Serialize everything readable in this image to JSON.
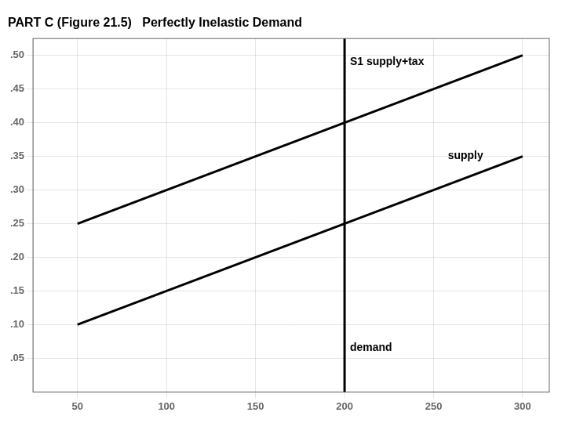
{
  "chart_data": {
    "type": "line",
    "title": "PART C (Figure 21.5)   Perfectly Inelastic Demand",
    "series": [
      {
        "x": [
          50,
          300
        ],
        "values": [
          0.1,
          0.35
        ],
        "color": "#000000"
      },
      {
        "x": [
          50,
          300
        ],
        "values": [
          0.25,
          0.5
        ],
        "color": "#000000"
      },
      {
        "x": [
          200,
          200
        ],
        "values": [
          0.0,
          0.525
        ],
        "color": "#000000"
      }
    ],
    "annotations": [
      {
        "text": "supply",
        "x": 258,
        "y": 0.35
      },
      {
        "text": "S1 supply+tax",
        "x": 203,
        "y": 0.49
      },
      {
        "text": "demand",
        "x": 203,
        "y": 0.065
      }
    ],
    "xlim": [
      25,
      315
    ],
    "ylim": [
      0.0,
      0.525
    ],
    "xticks": [
      50,
      100,
      150,
      200,
      250,
      300
    ],
    "yticks": [
      {
        "value": 0.05,
        "label": ".05"
      },
      {
        "value": 0.1,
        "label": ".10"
      },
      {
        "value": 0.15,
        "label": ".15"
      },
      {
        "value": 0.2,
        "label": ".20"
      },
      {
        "value": 0.25,
        "label": ".25"
      },
      {
        "value": 0.3,
        "label": ".30"
      },
      {
        "value": 0.35,
        "label": ".35"
      },
      {
        "value": 0.4,
        "label": ".40"
      },
      {
        "value": 0.45,
        "label": ".45"
      },
      {
        "value": 0.5,
        "label": ".50"
      }
    ],
    "grid": true
  }
}
